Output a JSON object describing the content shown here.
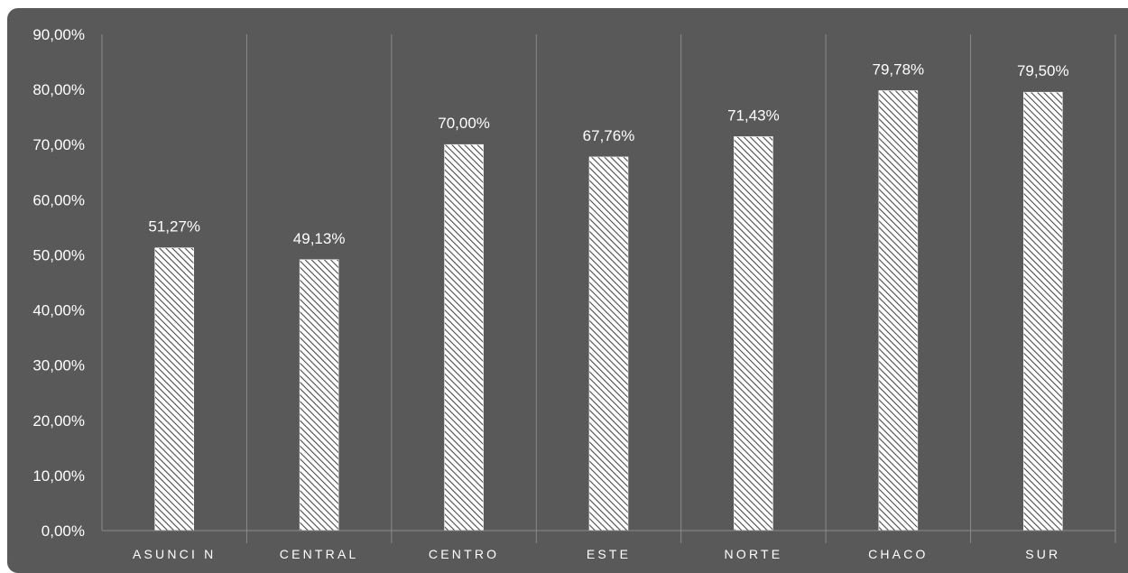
{
  "chart_data": {
    "type": "bar",
    "title": "",
    "xlabel": "",
    "ylabel": "",
    "categories": [
      "ASUNCI  N",
      "CENTRAL",
      "CENTRO",
      "ESTE",
      "NORTE",
      "CHACO",
      "SUR"
    ],
    "values": [
      51.27,
      49.13,
      70.0,
      67.76,
      71.43,
      79.78,
      79.5
    ],
    "value_labels": [
      "51,27%",
      "49,13%",
      "70,00%",
      "67,76%",
      "71,43%",
      "79,78%",
      "79,50%"
    ],
    "ylim": [
      0,
      90
    ],
    "yticks": [
      0,
      10,
      20,
      30,
      40,
      50,
      60,
      70,
      80,
      90
    ],
    "ytick_labels": [
      "0,00%",
      "10,00%",
      "20,00%",
      "30,00%",
      "40,00%",
      "50,00%",
      "60,00%",
      "70,00%",
      "80,00%",
      "90,00%"
    ],
    "grid": "vertical-category-separators",
    "legend": "none",
    "colors": {
      "background": "#585958",
      "bar_fill": "#ffffff",
      "bar_hatch": "#4a4a4a",
      "gridline": "#8a8a8a",
      "text": "#ffffff"
    },
    "bar_pattern": "diagonal-hatch"
  }
}
